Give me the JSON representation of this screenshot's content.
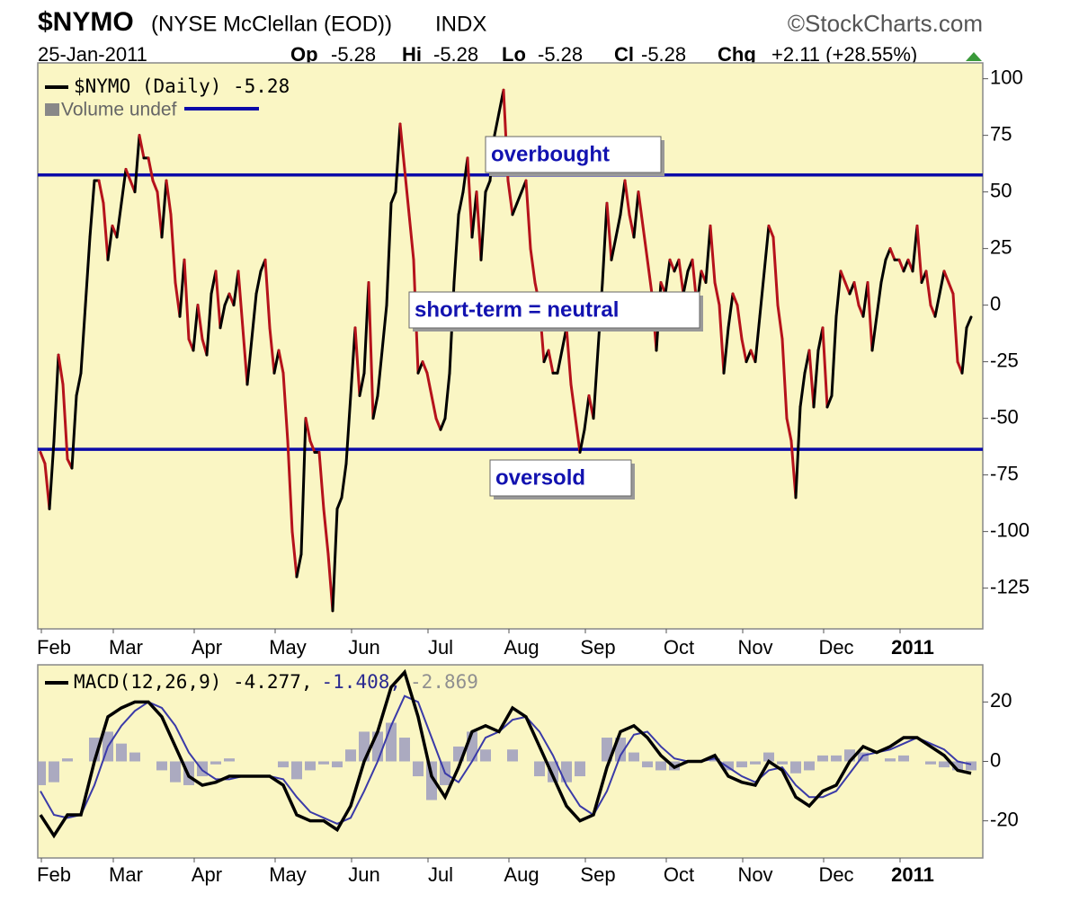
{
  "header": {
    "symbol": "$NYMO",
    "name": "(NYSE McClellan (EOD))",
    "exchange": "INDX",
    "source": "©StockCharts.com",
    "date": "25-Jan-2011",
    "quote": [
      {
        "label": "Op",
        "value": -5.28
      },
      {
        "label": "Hi",
        "value": -5.28
      },
      {
        "label": "Lo",
        "value": -5.28
      },
      {
        "label": "Cl",
        "value": -5.28
      }
    ],
    "change_label": "Chg",
    "change": "+2.11 (+28.55%)"
  },
  "chart_data": [
    {
      "type": "updown-line",
      "legend": "$NYMO (Daily) -5.28",
      "legend2": "Volume undef",
      "up_color": "#000000",
      "down_color": "#b5121b",
      "background": "#faf6c4",
      "values": [
        -65,
        -70,
        -90,
        -60,
        -22,
        -35,
        -68,
        -72,
        -40,
        -30,
        0,
        30,
        55,
        55,
        45,
        20,
        35,
        30,
        45,
        60,
        55,
        50,
        75,
        65,
        65,
        55,
        50,
        30,
        55,
        40,
        10,
        -5,
        20,
        -15,
        -20,
        0,
        -15,
        -22,
        5,
        15,
        -10,
        0,
        5,
        0,
        15,
        -10,
        -35,
        -15,
        5,
        15,
        20,
        -10,
        -30,
        -20,
        -30,
        -60,
        -100,
        -120,
        -110,
        -50,
        -60,
        -65,
        -65,
        -90,
        -110,
        -135,
        -90,
        -85,
        -70,
        -40,
        -10,
        -40,
        -30,
        10,
        -50,
        -40,
        -20,
        0,
        45,
        50,
        80,
        60,
        40,
        20,
        -30,
        -25,
        -30,
        -40,
        -50,
        -55,
        -50,
        -30,
        10,
        40,
        50,
        65,
        30,
        50,
        20,
        50,
        55,
        75,
        85,
        95,
        55,
        40,
        45,
        50,
        55,
        25,
        10,
        0,
        -25,
        -20,
        -30,
        -30,
        -20,
        -10,
        -35,
        -50,
        -65,
        -55,
        -40,
        -50,
        -20,
        10,
        45,
        20,
        30,
        40,
        55,
        40,
        30,
        50,
        35,
        20,
        5,
        -20,
        10,
        5,
        20,
        15,
        20,
        5,
        15,
        20,
        0,
        15,
        10,
        35,
        10,
        0,
        -30,
        -10,
        5,
        0,
        -15,
        -25,
        -20,
        -25,
        -5,
        15,
        35,
        30,
        0,
        -15,
        -50,
        -60,
        -85,
        -45,
        -30,
        -20,
        -45,
        -20,
        -10,
        -45,
        -40,
        -5,
        15,
        10,
        5,
        10,
        0,
        -5,
        10,
        -20,
        -5,
        10,
        20,
        25,
        20,
        20,
        15,
        20,
        15,
        35,
        10,
        15,
        0,
        -5,
        5,
        15,
        10,
        5,
        -25,
        -30,
        -10,
        -5.28
      ],
      "xticks": [
        {
          "value": 3,
          "label": "Feb"
        },
        {
          "value": 19,
          "label": "Mar"
        },
        {
          "value": 37,
          "label": "Apr"
        },
        {
          "value": 55,
          "label": "May"
        },
        {
          "value": 72,
          "label": "Jun"
        },
        {
          "value": 89,
          "label": "Jul"
        },
        {
          "value": 107,
          "label": "Aug"
        },
        {
          "value": 124,
          "label": "Sep"
        },
        {
          "value": 142,
          "label": "Oct"
        },
        {
          "value": 159,
          "label": "Nov"
        },
        {
          "value": 177,
          "label": "Dec"
        },
        {
          "value": 194,
          "label": "2011"
        }
      ],
      "ylim": [
        -143,
        107
      ],
      "yticks": [
        100,
        75,
        50,
        25,
        0,
        -25,
        -50,
        -75,
        -100,
        -125
      ],
      "reference_lines": [
        {
          "value": 57.5,
          "color": "#0a0aa8"
        },
        {
          "value": -63.7,
          "color": "#0a0aa8"
        }
      ],
      "annotations": [
        "overbought",
        "short-term = neutral",
        "oversold"
      ]
    },
    {
      "type": "macd",
      "legend": [
        "MACD(12,26,9) -4.277,",
        "-1.408,",
        "-2.869"
      ],
      "legend_colors": [
        "#000000",
        "#2a2a90",
        "#909090"
      ],
      "background": "#faf6c4",
      "macd": {
        "color": "#000000",
        "values": [
          -18,
          -25,
          -18,
          -18,
          0,
          15,
          18,
          20,
          20,
          15,
          5,
          -5,
          -8,
          -7,
          -5,
          -5,
          -5,
          -5,
          -8,
          -18,
          -20,
          -20,
          -23,
          -15,
          0,
          10,
          25,
          30,
          15,
          -5,
          -12,
          -2,
          10,
          12,
          10,
          18,
          15,
          5,
          -5,
          -15,
          -20,
          -18,
          -2,
          10,
          12,
          8,
          2,
          -2,
          0,
          0,
          2,
          -5,
          -7,
          -8,
          0,
          -3,
          -12,
          -15,
          -10,
          -8,
          0,
          5,
          3,
          5,
          8,
          8,
          5,
          2,
          -3,
          -4
        ]
      },
      "signal": {
        "color": "#3a3aa8",
        "values": [
          -10,
          -18,
          -19,
          -18,
          -8,
          5,
          12,
          17,
          20,
          18,
          12,
          3,
          -3,
          -6,
          -6,
          -5,
          -5,
          -5,
          -6,
          -12,
          -17,
          -19,
          -21,
          -19,
          -10,
          0,
          12,
          22,
          20,
          8,
          -4,
          -7,
          0,
          8,
          10,
          14,
          15,
          10,
          2,
          -8,
          -15,
          -18,
          -10,
          2,
          9,
          10,
          5,
          1,
          0,
          0,
          1,
          -2,
          -5,
          -7,
          -3,
          -2,
          -8,
          -12,
          -12,
          -10,
          -4,
          2,
          3,
          4,
          6,
          8,
          6,
          4,
          0,
          -1
        ]
      },
      "histogram": {
        "color": "#9c9cc0",
        "values": [
          -8,
          -7,
          1,
          0,
          8,
          10,
          6,
          3,
          0,
          -3,
          -7,
          -8,
          -5,
          -1,
          1,
          0,
          0,
          0,
          -2,
          -6,
          -3,
          -1,
          -2,
          4,
          10,
          10,
          13,
          8,
          -5,
          -13,
          -8,
          5,
          10,
          4,
          0,
          4,
          0,
          -5,
          -7,
          -7,
          -5,
          0,
          8,
          8,
          3,
          -2,
          -3,
          -3,
          0,
          0,
          1,
          -3,
          -2,
          -1,
          3,
          -1,
          -4,
          -3,
          2,
          2,
          4,
          3,
          0,
          1,
          2,
          0,
          -1,
          -2,
          -3,
          -3
        ]
      },
      "ylim": [
        -32.5,
        32.5
      ],
      "yticks": [
        20,
        0,
        -20
      ]
    }
  ]
}
